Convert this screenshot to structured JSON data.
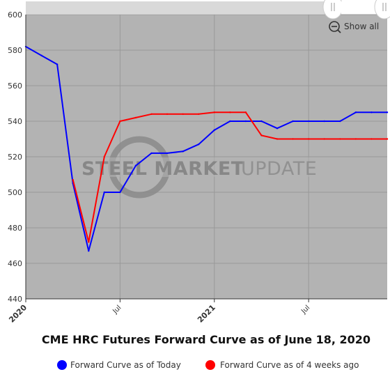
{
  "chart_data": {
    "type": "line",
    "title": "CME HRC Futures Forward Curve as of June 18, 2020",
    "xlabel": "",
    "ylabel": "",
    "ylim": [
      440,
      600
    ],
    "y_ticks": [
      440,
      460,
      480,
      500,
      520,
      540,
      560,
      580,
      600
    ],
    "x_range": [
      "2020-01",
      "2021-12"
    ],
    "x_ticks": [
      {
        "at": "2020-01",
        "label": "2020",
        "major": true
      },
      {
        "at": "2020-07",
        "label": "Jul",
        "major": false
      },
      {
        "at": "2021-01",
        "label": "2021",
        "major": true
      },
      {
        "at": "2021-07",
        "label": "Jul",
        "major": false
      }
    ],
    "grid": true,
    "legend_position": "bottom",
    "series": [
      {
        "name": "Forward Curve as of Today",
        "color": "#0000ff",
        "points": [
          [
            "2020-01",
            582
          ],
          [
            "2020-02",
            577
          ],
          [
            "2020-03",
            572
          ],
          [
            "2020-04",
            505
          ],
          [
            "2020-05",
            467
          ],
          [
            "2020-06",
            500
          ],
          [
            "2020-07",
            500
          ],
          [
            "2020-08",
            515
          ],
          [
            "2020-09",
            522
          ],
          [
            "2020-10",
            522
          ],
          [
            "2020-11",
            523
          ],
          [
            "2020-12",
            527
          ],
          [
            "2021-01",
            535
          ],
          [
            "2021-02",
            540
          ],
          [
            "2021-03",
            540
          ],
          [
            "2021-04",
            540
          ],
          [
            "2021-05",
            536
          ],
          [
            "2021-06",
            540
          ],
          [
            "2021-07",
            540
          ],
          [
            "2021-08",
            540
          ],
          [
            "2021-09",
            540
          ],
          [
            "2021-10",
            545
          ],
          [
            "2021-11",
            545
          ],
          [
            "2021-12",
            545
          ]
        ]
      },
      {
        "name": "Forward Curve as of 4 weeks ago",
        "color": "#ff0000",
        "points": [
          [
            "2020-04",
            507
          ],
          [
            "2020-05",
            472
          ],
          [
            "2020-06",
            520
          ],
          [
            "2020-07",
            540
          ],
          [
            "2020-08",
            542
          ],
          [
            "2020-09",
            544
          ],
          [
            "2020-10",
            544
          ],
          [
            "2020-11",
            544
          ],
          [
            "2020-12",
            544
          ],
          [
            "2021-01",
            545
          ],
          [
            "2021-02",
            545
          ],
          [
            "2021-03",
            545
          ],
          [
            "2021-04",
            532
          ],
          [
            "2021-05",
            530
          ],
          [
            "2021-06",
            530
          ],
          [
            "2021-07",
            530
          ],
          [
            "2021-08",
            530
          ],
          [
            "2021-09",
            530
          ],
          [
            "2021-10",
            530
          ],
          [
            "2021-11",
            530
          ],
          [
            "2021-12",
            530
          ]
        ]
      }
    ]
  },
  "watermark": {
    "bold": "STEEL MARKET",
    "light": "UPDATE"
  },
  "controls": {
    "show_all": "Show all",
    "zoom_icon": "zoom-out-icon"
  },
  "colors": {
    "plot_background": "#b3b3b3",
    "grid": "#999999",
    "navigator": "#d9d9d9"
  }
}
